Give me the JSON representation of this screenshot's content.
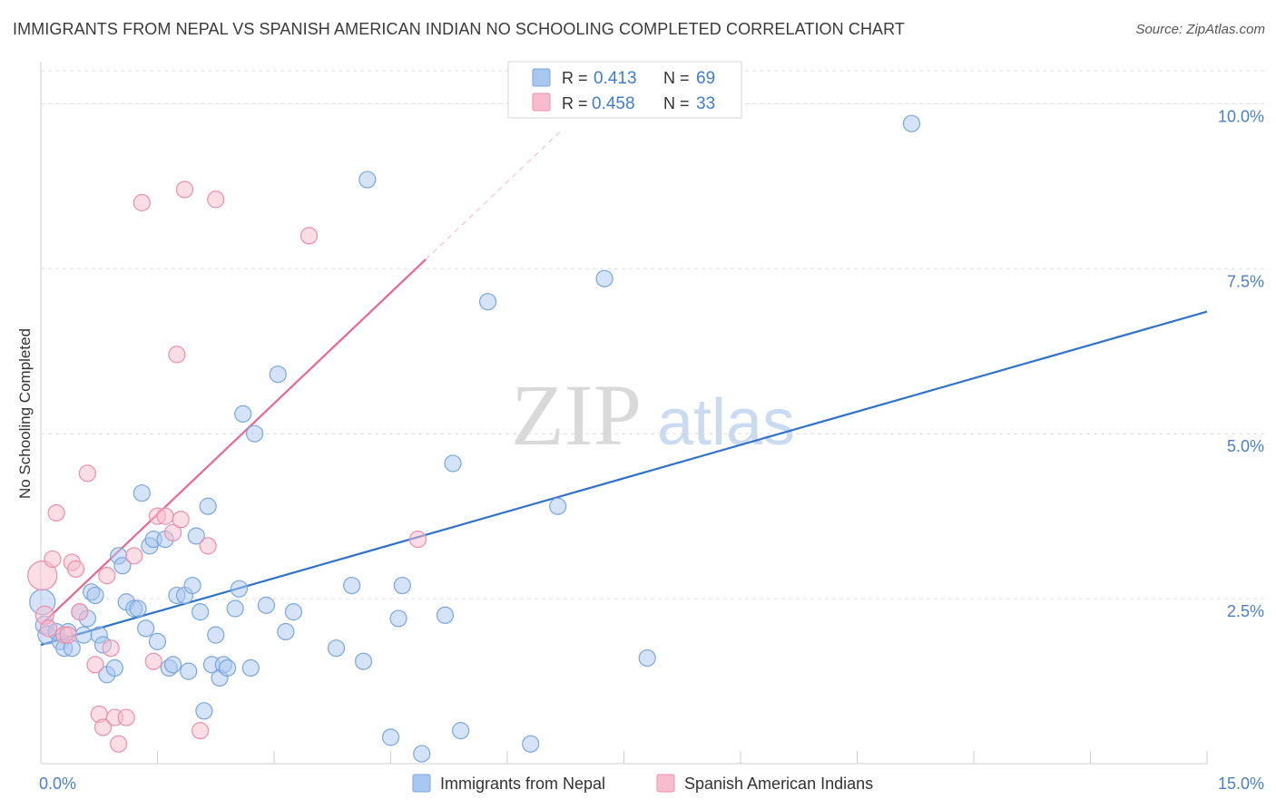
{
  "header": {
    "title": "IMMIGRANTS FROM NEPAL VS SPANISH AMERICAN INDIAN NO SCHOOLING COMPLETED CORRELATION CHART",
    "source": "Source: ZipAtlas.com"
  },
  "watermark": {
    "zip": "ZIP",
    "atlas": "atlas"
  },
  "colors": {
    "blue_fill": "#a9c8ef",
    "blue_stroke": "#7aa6dc",
    "blue_line": "#2f72c8",
    "pink_fill": "#f7bccd",
    "pink_stroke": "#ec8fab",
    "pink_line": "#e8668f",
    "tick_text": "#4a7fc6",
    "grid": "#dddddd"
  },
  "legend": {
    "row1": {
      "r_label": "R =",
      "r_value": "0.413",
      "n_label": "N =",
      "n_value": "69"
    },
    "row2": {
      "r_label": "R =",
      "r_value": "0.458",
      "n_label": "N =",
      "n_value": "33"
    }
  },
  "chart_data": {
    "type": "scatter",
    "title": "IMMIGRANTS FROM NEPAL VS SPANISH AMERICAN INDIAN NO SCHOOLING COMPLETED CORRELATION CHART",
    "xlabel": "",
    "ylabel": "No Schooling Completed",
    "xlim": [
      0,
      15
    ],
    "ylim": [
      0,
      10.5
    ],
    "x_tick_labels": [
      {
        "value": 0,
        "label": "0.0%"
      },
      {
        "value": 15,
        "label": "15.0%"
      }
    ],
    "y_tick_labels": [
      {
        "value": 2.5,
        "label": "2.5%"
      },
      {
        "value": 5.0,
        "label": "5.0%"
      },
      {
        "value": 7.5,
        "label": "7.5%"
      },
      {
        "value": 10.0,
        "label": "10.0%"
      }
    ],
    "x_minor_ticks": [
      0,
      1.5,
      3,
      4.5,
      6,
      7.5,
      9,
      10.5,
      12,
      13.5,
      15
    ],
    "grid": true,
    "legend_position": "top-center",
    "series": [
      {
        "name": "Immigrants from Nepal",
        "color": "blue",
        "r": 0.413,
        "n": 69,
        "trend": {
          "x": [
            0,
            15
          ],
          "y": [
            1.8,
            6.85
          ],
          "solid_to": 15
        },
        "points": [
          [
            0.02,
            2.45,
            14
          ],
          [
            0.05,
            2.1,
            10
          ],
          [
            0.08,
            1.95,
            10
          ],
          [
            0.2,
            2.0,
            9
          ],
          [
            0.25,
            1.85,
            9
          ],
          [
            0.3,
            1.75,
            9
          ],
          [
            0.35,
            2.0,
            9
          ],
          [
            0.4,
            1.75,
            9
          ],
          [
            0.5,
            2.3,
            9
          ],
          [
            0.55,
            1.95,
            9
          ],
          [
            0.6,
            2.2,
            9
          ],
          [
            0.65,
            2.6,
            9
          ],
          [
            0.7,
            2.55,
            9
          ],
          [
            0.75,
            1.95,
            9
          ],
          [
            0.8,
            1.8,
            9
          ],
          [
            0.85,
            1.35,
            9
          ],
          [
            0.95,
            1.45,
            9
          ],
          [
            1.0,
            3.15,
            9
          ],
          [
            1.05,
            3.0,
            9
          ],
          [
            1.1,
            2.45,
            9
          ],
          [
            1.2,
            2.35,
            9
          ],
          [
            1.25,
            2.35,
            9
          ],
          [
            1.3,
            4.1,
            9
          ],
          [
            1.35,
            2.05,
            9
          ],
          [
            1.4,
            3.3,
            9
          ],
          [
            1.45,
            3.4,
            9
          ],
          [
            1.5,
            1.85,
            9
          ],
          [
            1.6,
            3.4,
            9
          ],
          [
            1.65,
            1.45,
            9
          ],
          [
            1.7,
            1.5,
            9
          ],
          [
            1.75,
            2.55,
            9
          ],
          [
            1.85,
            2.55,
            9
          ],
          [
            1.9,
            1.4,
            9
          ],
          [
            1.95,
            2.7,
            9
          ],
          [
            2.0,
            3.45,
            9
          ],
          [
            2.05,
            2.3,
            9
          ],
          [
            2.1,
            0.8,
            9
          ],
          [
            2.15,
            3.9,
            9
          ],
          [
            2.2,
            1.5,
            9
          ],
          [
            2.25,
            1.95,
            9
          ],
          [
            2.3,
            1.3,
            9
          ],
          [
            2.35,
            1.5,
            9
          ],
          [
            2.4,
            1.45,
            9
          ],
          [
            2.5,
            2.35,
            9
          ],
          [
            2.55,
            2.65,
            9
          ],
          [
            2.6,
            5.3,
            9
          ],
          [
            2.7,
            1.45,
            9
          ],
          [
            2.75,
            5.0,
            9
          ],
          [
            2.9,
            2.4,
            9
          ],
          [
            3.05,
            5.9,
            9
          ],
          [
            3.15,
            2.0,
            9
          ],
          [
            3.25,
            2.3,
            9
          ],
          [
            3.8,
            1.75,
            9
          ],
          [
            4.0,
            2.7,
            9
          ],
          [
            4.15,
            1.55,
            9
          ],
          [
            4.2,
            8.85,
            9
          ],
          [
            4.5,
            0.4,
            9
          ],
          [
            4.6,
            2.2,
            9
          ],
          [
            4.65,
            2.7,
            9
          ],
          [
            4.9,
            0.15,
            9
          ],
          [
            5.2,
            2.25,
            9
          ],
          [
            5.3,
            4.55,
            9
          ],
          [
            5.4,
            0.5,
            9
          ],
          [
            5.75,
            7.0,
            9
          ],
          [
            6.3,
            0.3,
            9
          ],
          [
            6.65,
            3.9,
            9
          ],
          [
            7.25,
            7.35,
            9
          ],
          [
            7.8,
            1.6,
            9
          ],
          [
            11.2,
            9.7,
            9
          ]
        ]
      },
      {
        "name": "Spanish American Indians",
        "color": "pink",
        "r": 0.458,
        "n": 33,
        "trend": {
          "x": [
            0,
            6.7
          ],
          "y": [
            2.1,
            9.6
          ],
          "solid_to": 4.95
        },
        "points": [
          [
            0.02,
            2.85,
            16
          ],
          [
            0.05,
            2.25,
            10
          ],
          [
            0.1,
            2.05,
            9
          ],
          [
            0.15,
            3.1,
            9
          ],
          [
            0.2,
            3.8,
            9
          ],
          [
            0.3,
            1.95,
            9
          ],
          [
            0.35,
            1.95,
            9
          ],
          [
            0.4,
            3.05,
            9
          ],
          [
            0.45,
            2.95,
            9
          ],
          [
            0.5,
            2.3,
            9
          ],
          [
            0.6,
            4.4,
            9
          ],
          [
            0.7,
            1.5,
            9
          ],
          [
            0.75,
            0.75,
            9
          ],
          [
            0.8,
            0.55,
            9
          ],
          [
            0.85,
            2.85,
            9
          ],
          [
            0.9,
            1.75,
            9
          ],
          [
            0.95,
            0.7,
            9
          ],
          [
            1.0,
            0.3,
            9
          ],
          [
            1.1,
            0.7,
            9
          ],
          [
            1.2,
            3.15,
            9
          ],
          [
            1.3,
            8.5,
            9
          ],
          [
            1.45,
            1.55,
            9
          ],
          [
            1.5,
            3.75,
            9
          ],
          [
            1.6,
            3.75,
            9
          ],
          [
            1.7,
            3.5,
            9
          ],
          [
            1.75,
            6.2,
            9
          ],
          [
            1.8,
            3.7,
            9
          ],
          [
            1.85,
            8.7,
            9
          ],
          [
            2.05,
            0.5,
            9
          ],
          [
            2.15,
            3.3,
            9
          ],
          [
            2.25,
            8.55,
            9
          ],
          [
            3.45,
            8.0,
            9
          ],
          [
            4.85,
            3.4,
            9
          ]
        ]
      }
    ]
  },
  "bottom_legend": {
    "item1": "Immigrants from Nepal",
    "item2": "Spanish American Indians"
  }
}
